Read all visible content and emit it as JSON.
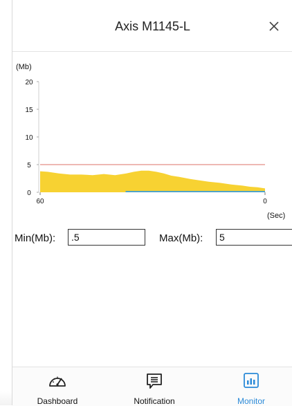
{
  "window": {
    "title": "Axis M1145-L",
    "close_icon": "close-icon"
  },
  "chart_data": {
    "type": "area",
    "ylabel": "(Mb)",
    "xlabel": "(Sec)",
    "yticks": [
      "20",
      "15",
      "10",
      "5",
      "0"
    ],
    "xticks": [
      "60",
      "0"
    ],
    "ylim": [
      0,
      20
    ],
    "xlim": [
      60,
      0
    ],
    "threshold": 5,
    "series": [
      {
        "color": "#f7d232",
        "x": [
          60,
          58,
          55,
          52,
          49,
          46,
          43,
          40,
          37,
          35,
          33,
          31,
          29,
          27,
          25,
          23,
          20,
          18,
          15,
          12,
          9,
          6,
          4,
          2,
          0
        ],
        "values": [
          3.8,
          3.7,
          3.4,
          3.2,
          3.2,
          3.1,
          3.3,
          3.1,
          3.4,
          3.7,
          3.9,
          3.9,
          3.7,
          3.4,
          3.0,
          2.8,
          2.4,
          2.2,
          1.9,
          1.7,
          1.4,
          1.2,
          1.0,
          0.9,
          0.7
        ]
      }
    ],
    "threshold_color": "#e8a09a",
    "baseline_color": "#4fa3c7"
  },
  "controls": {
    "min_label": "Min(Mb):",
    "min_value": ".5",
    "max_label": "Max(Mb):",
    "max_value": "5"
  },
  "tabs": [
    {
      "label": "Dashboard",
      "icon": "gauge-icon",
      "active": false
    },
    {
      "label": "Notification",
      "icon": "message-icon",
      "active": false
    },
    {
      "label": "Monitor",
      "icon": "bar-chart-icon",
      "active": true
    }
  ],
  "colors": {
    "accent": "#2b8ad8"
  }
}
